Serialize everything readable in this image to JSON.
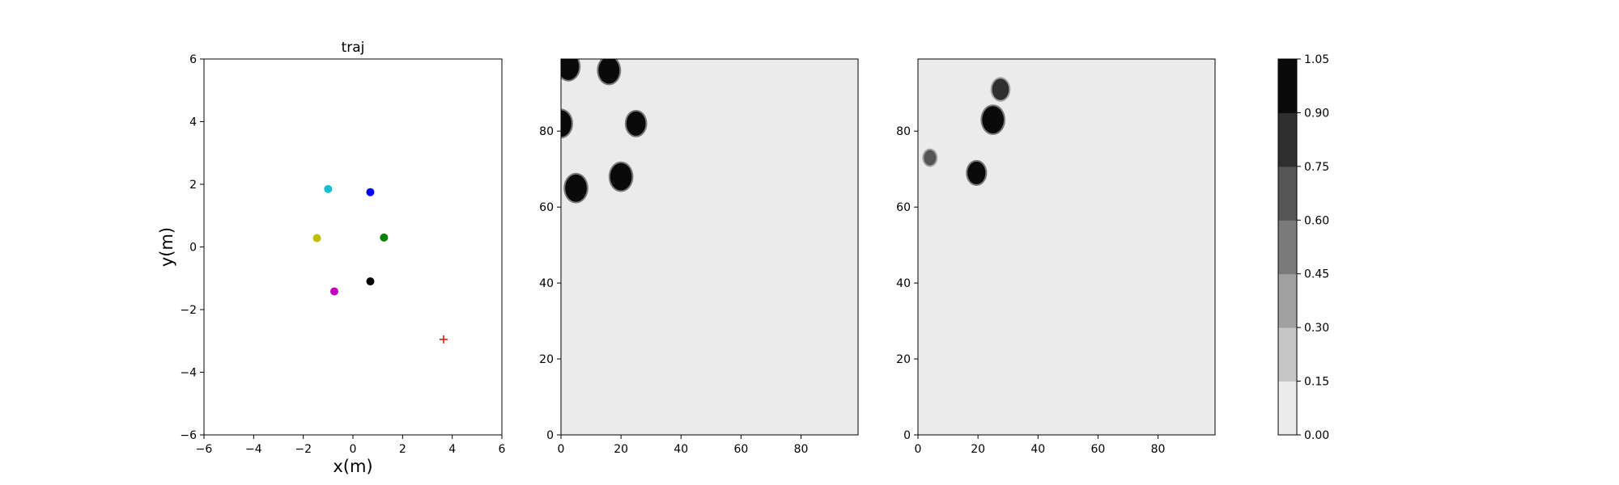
{
  "figure": {
    "background": "#ffffff",
    "map_background": "#ebebeb"
  },
  "chart_data": [
    {
      "type": "scatter",
      "title": "traj",
      "xlabel": "x(m)",
      "ylabel": "y(m)",
      "xlim": [
        -6,
        6
      ],
      "ylim": [
        -6,
        6
      ],
      "xticks": [
        "−6",
        "−4",
        "−2",
        "0",
        "2",
        "4",
        "6"
      ],
      "yticks": [
        "−6",
        "−4",
        "−2",
        "0",
        "2",
        "4",
        "6"
      ],
      "tick_values": [
        -6,
        -4,
        -2,
        0,
        2,
        4,
        6
      ],
      "grid": false,
      "points": [
        {
          "x": -1.0,
          "y": 1.85,
          "color": "#17becf",
          "marker": "circle"
        },
        {
          "x": 0.7,
          "y": 1.75,
          "color": "#0000ff",
          "marker": "circle"
        },
        {
          "x": -1.45,
          "y": 0.28,
          "color": "#bfbf00",
          "marker": "circle"
        },
        {
          "x": 1.25,
          "y": 0.3,
          "color": "#008000",
          "marker": "circle"
        },
        {
          "x": 0.7,
          "y": -1.1,
          "color": "#000000",
          "marker": "circle"
        },
        {
          "x": -0.75,
          "y": -1.42,
          "color": "#bf00bf",
          "marker": "circle"
        }
      ],
      "goal": {
        "x": 3.65,
        "y": -2.95,
        "color": "#ff0000",
        "marker": "plus"
      }
    },
    {
      "type": "heatmap",
      "title": "",
      "xlim": [
        0,
        99
      ],
      "ylim": [
        0,
        99
      ],
      "xticks": [
        "0",
        "20",
        "40",
        "60",
        "80"
      ],
      "yticks": [
        "0",
        "20",
        "40",
        "60",
        "80"
      ],
      "tick_values": [
        0,
        20,
        40,
        60,
        80
      ],
      "background_value": 0.05,
      "blobs": [
        {
          "x": 2.5,
          "y": 97,
          "r": 3.5,
          "value": 1.0
        },
        {
          "x": 16,
          "y": 96,
          "r": 3.5,
          "value": 1.0
        },
        {
          "x": 0,
          "y": 82,
          "r": 3.5,
          "value": 1.0
        },
        {
          "x": 25,
          "y": 82,
          "r": 3.2,
          "value": 1.0
        },
        {
          "x": 5,
          "y": 65,
          "r": 3.6,
          "value": 1.0
        },
        {
          "x": 20,
          "y": 68,
          "r": 3.6,
          "value": 1.0
        }
      ]
    },
    {
      "type": "heatmap",
      "title": "",
      "xlim": [
        0,
        99
      ],
      "ylim": [
        0,
        99
      ],
      "xticks": [
        "0",
        "20",
        "40",
        "60",
        "80"
      ],
      "yticks": [
        "0",
        "20",
        "40",
        "60",
        "80"
      ],
      "tick_values": [
        0,
        20,
        40,
        60,
        80
      ],
      "background_value": 0.05,
      "blobs": [
        {
          "x": 27.5,
          "y": 91,
          "r": 2.8,
          "value": 0.8
        },
        {
          "x": 25,
          "y": 83,
          "r": 3.6,
          "value": 1.0
        },
        {
          "x": 4,
          "y": 73,
          "r": 2.0,
          "value": 0.7
        },
        {
          "x": 19.5,
          "y": 69,
          "r": 3.0,
          "value": 1.0
        }
      ]
    }
  ],
  "colorbar": {
    "levels": [
      0.0,
      0.15,
      0.3,
      0.45,
      0.6,
      0.75,
      0.9,
      1.05
    ],
    "tick_labels": [
      "0.00",
      "0.15",
      "0.30",
      "0.45",
      "0.60",
      "0.75",
      "0.90",
      "1.05"
    ],
    "colors": [
      "#ebebeb",
      "#c6c6c6",
      "#a0a0a0",
      "#7a7a7a",
      "#555555",
      "#2f2f2f",
      "#0a0a0a"
    ]
  }
}
